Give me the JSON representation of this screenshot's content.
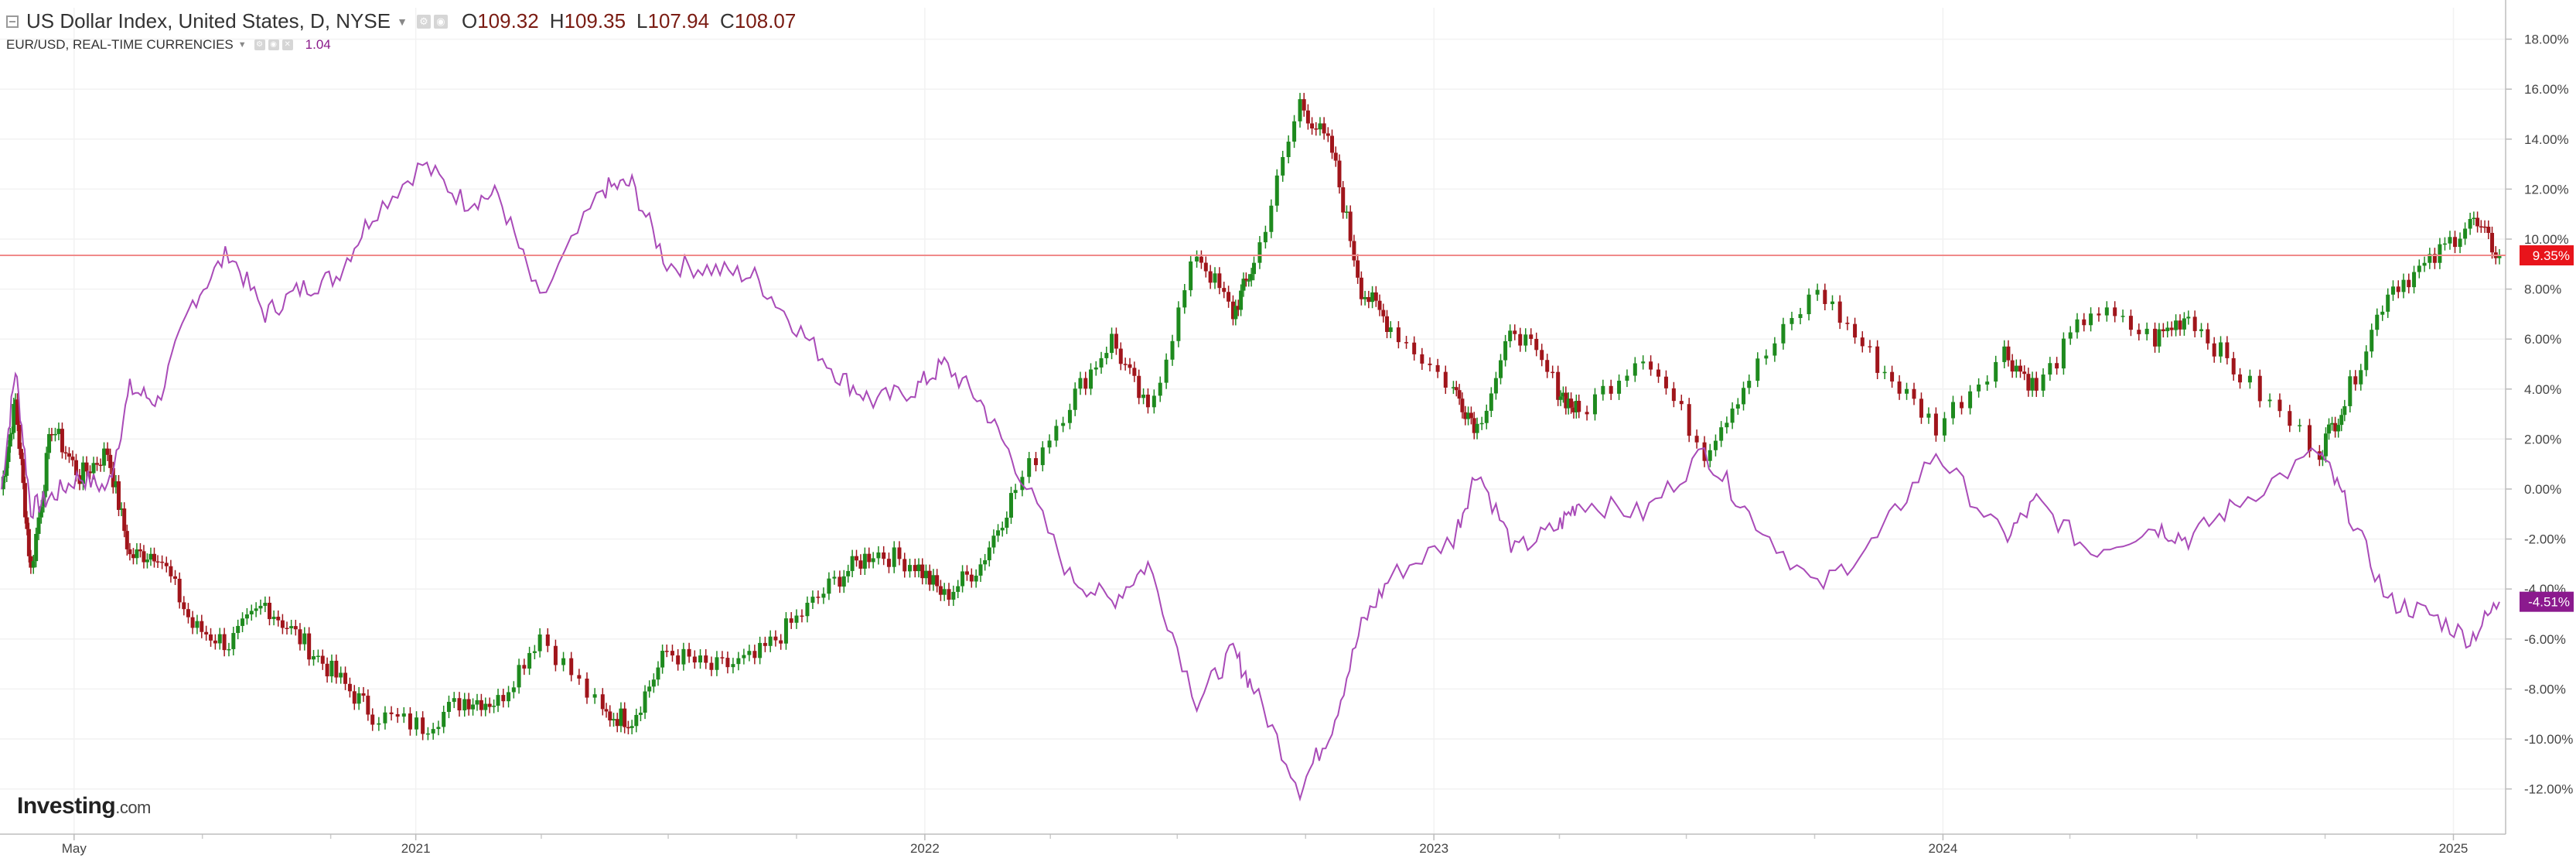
{
  "legend": {
    "main": {
      "title": "US Dollar Index, United States, D, NYSE",
      "ohlc": [
        {
          "label": "O",
          "value": "109.32"
        },
        {
          "label": "H",
          "value": "109.35"
        },
        {
          "label": "L",
          "value": "107.94"
        },
        {
          "label": "C",
          "value": "108.07"
        }
      ]
    },
    "sub": {
      "title": "EUR/USD, REAL-TIME CURRENCIES",
      "value": "1.04"
    }
  },
  "logo": {
    "brand": "Investing",
    "suffix": ".com"
  },
  "colors": {
    "up": "#1e8a1e",
    "down": "#a0151b",
    "eurusd_line": "#a94bb8",
    "dxy_badge": "#e8141b",
    "eurusd_badge": "#8b1a8e",
    "price_line": "#f08a8a",
    "grid": "#f2f2f2"
  },
  "chart_data": {
    "type": "line",
    "grid": true,
    "yaxis_side": "right",
    "ylim": [
      -13,
      19
    ],
    "y_ticks": [
      18,
      16,
      14,
      12,
      10,
      8,
      6,
      4,
      2,
      0,
      -2,
      -4,
      -6,
      -8,
      -10,
      -12
    ],
    "y_tick_labels": [
      "18.00%",
      "16.00%",
      "14.00%",
      "12.00%",
      "10.00%",
      "8.00%",
      "6.00%",
      "4.00%",
      "2.00%",
      "0.00%",
      "-2.00%",
      "-4.00%",
      "-6.00%",
      "-8.00%",
      "-10.00%",
      "-12.00%"
    ],
    "xlim": [
      "2020-03-10",
      "2025-02-03"
    ],
    "x_ticks": [
      {
        "date": "2020-05-01",
        "label": "May"
      },
      {
        "date": "2021-01-01",
        "label": "2021"
      },
      {
        "date": "2022-01-01",
        "label": "2022"
      },
      {
        "date": "2023-01-01",
        "label": "2023"
      },
      {
        "date": "2024-01-01",
        "label": "2024"
      },
      {
        "date": "2025-01-01",
        "label": "2025"
      }
    ],
    "minor_x_ticks": [
      "2020-08-01",
      "2020-11-01",
      "2021-04-01",
      "2021-07-01",
      "2021-10-01",
      "2022-04-01",
      "2022-07-01",
      "2022-10-01",
      "2023-04-01",
      "2023-07-01",
      "2023-10-01",
      "2024-04-01",
      "2024-07-01",
      "2024-10-01"
    ],
    "badges": [
      {
        "series": "US Dollar Index",
        "value": 9.35,
        "label": "9.35%"
      },
      {
        "series": "EUR/USD",
        "value": -4.51,
        "label": "-4.51%"
      }
    ],
    "series": [
      {
        "name": "US Dollar Index",
        "kind": "candlestick",
        "values": [
          {
            "date": "2020-03-10",
            "value": 0.0
          },
          {
            "date": "2020-03-20",
            "value": 3.5
          },
          {
            "date": "2020-03-31",
            "value": -3.3
          },
          {
            "date": "2020-04-15",
            "value": 2.5
          },
          {
            "date": "2020-05-05",
            "value": 0.5
          },
          {
            "date": "2020-05-25",
            "value": 1.5
          },
          {
            "date": "2020-06-10",
            "value": -2.7
          },
          {
            "date": "2020-06-30",
            "value": -2.5
          },
          {
            "date": "2020-07-25",
            "value": -5.5
          },
          {
            "date": "2020-08-20",
            "value": -6.2
          },
          {
            "date": "2020-09-15",
            "value": -4.6
          },
          {
            "date": "2020-10-10",
            "value": -6.0
          },
          {
            "date": "2020-11-05",
            "value": -7.5
          },
          {
            "date": "2020-12-01",
            "value": -9.0
          },
          {
            "date": "2021-01-06",
            "value": -9.5
          },
          {
            "date": "2021-02-05",
            "value": -8.4
          },
          {
            "date": "2021-03-01",
            "value": -8.5
          },
          {
            "date": "2021-03-31",
            "value": -5.8
          },
          {
            "date": "2021-05-15",
            "value": -9.0
          },
          {
            "date": "2021-06-05",
            "value": -9.2
          },
          {
            "date": "2021-06-30",
            "value": -6.5
          },
          {
            "date": "2021-08-01",
            "value": -7.2
          },
          {
            "date": "2021-09-01",
            "value": -6.8
          },
          {
            "date": "2021-10-01",
            "value": -5.2
          },
          {
            "date": "2021-11-01",
            "value": -3.5
          },
          {
            "date": "2021-11-25",
            "value": -2.5
          },
          {
            "date": "2021-12-25",
            "value": -3.0
          },
          {
            "date": "2022-01-15",
            "value": -4.3
          },
          {
            "date": "2022-02-10",
            "value": -3.0
          },
          {
            "date": "2022-03-07",
            "value": 0.0
          },
          {
            "date": "2022-04-15",
            "value": 3.5
          },
          {
            "date": "2022-05-15",
            "value": 6.0
          },
          {
            "date": "2022-06-10",
            "value": 3.0
          },
          {
            "date": "2022-07-15",
            "value": 9.5
          },
          {
            "date": "2022-08-10",
            "value": 7.0
          },
          {
            "date": "2022-08-25",
            "value": 9.0
          },
          {
            "date": "2022-09-27",
            "value": 15.5
          },
          {
            "date": "2022-10-20",
            "value": 13.5
          },
          {
            "date": "2022-11-10",
            "value": 8.0
          },
          {
            "date": "2022-12-01",
            "value": 6.5
          },
          {
            "date": "2023-01-15",
            "value": 4.0
          },
          {
            "date": "2023-02-01",
            "value": 2.5
          },
          {
            "date": "2023-02-28",
            "value": 6.5
          },
          {
            "date": "2023-03-31",
            "value": 4.0
          },
          {
            "date": "2023-04-15",
            "value": 3.0
          },
          {
            "date": "2023-05-31",
            "value": 5.5
          },
          {
            "date": "2023-07-14",
            "value": 1.5
          },
          {
            "date": "2023-08-15",
            "value": 4.5
          },
          {
            "date": "2023-10-03",
            "value": 8.0
          },
          {
            "date": "2023-11-15",
            "value": 5.0
          },
          {
            "date": "2023-12-27",
            "value": 2.5
          },
          {
            "date": "2024-02-14",
            "value": 5.5
          },
          {
            "date": "2024-03-08",
            "value": 4.0
          },
          {
            "date": "2024-04-16",
            "value": 7.2
          },
          {
            "date": "2024-06-01",
            "value": 6.0
          },
          {
            "date": "2024-06-25",
            "value": 7.0
          },
          {
            "date": "2024-08-01",
            "value": 4.5
          },
          {
            "date": "2024-09-27",
            "value": 1.5
          },
          {
            "date": "2024-10-15",
            "value": 3.5
          },
          {
            "date": "2024-11-15",
            "value": 8.0
          },
          {
            "date": "2024-12-15",
            "value": 9.0
          },
          {
            "date": "2025-01-13",
            "value": 10.8
          },
          {
            "date": "2025-02-03",
            "value": 9.35
          }
        ]
      },
      {
        "name": "EUR/USD",
        "kind": "line",
        "values": [
          {
            "date": "2020-03-10",
            "value": 0.0
          },
          {
            "date": "2020-03-20",
            "value": 4.8
          },
          {
            "date": "2020-03-31",
            "value": -0.8
          },
          {
            "date": "2020-04-15",
            "value": -0.3
          },
          {
            "date": "2020-05-05",
            "value": 0.5
          },
          {
            "date": "2020-05-25",
            "value": 0.0
          },
          {
            "date": "2020-06-10",
            "value": 4.0
          },
          {
            "date": "2020-06-30",
            "value": 3.5
          },
          {
            "date": "2020-07-25",
            "value": 7.5
          },
          {
            "date": "2020-08-20",
            "value": 9.5
          },
          {
            "date": "2020-09-15",
            "value": 7.0
          },
          {
            "date": "2020-10-10",
            "value": 8.0
          },
          {
            "date": "2020-11-05",
            "value": 8.5
          },
          {
            "date": "2020-12-01",
            "value": 11.0
          },
          {
            "date": "2021-01-06",
            "value": 13.0
          },
          {
            "date": "2021-02-05",
            "value": 11.5
          },
          {
            "date": "2021-03-01",
            "value": 11.8
          },
          {
            "date": "2021-03-31",
            "value": 7.5
          },
          {
            "date": "2021-05-15",
            "value": 12.0
          },
          {
            "date": "2021-06-05",
            "value": 12.2
          },
          {
            "date": "2021-06-30",
            "value": 9.0
          },
          {
            "date": "2021-08-01",
            "value": 8.8
          },
          {
            "date": "2021-09-01",
            "value": 8.5
          },
          {
            "date": "2021-10-01",
            "value": 6.5
          },
          {
            "date": "2021-11-01",
            "value": 4.5
          },
          {
            "date": "2021-11-25",
            "value": 3.5
          },
          {
            "date": "2021-12-25",
            "value": 4.0
          },
          {
            "date": "2022-01-15",
            "value": 5.0
          },
          {
            "date": "2022-02-10",
            "value": 3.5
          },
          {
            "date": "2022-03-07",
            "value": 1.0
          },
          {
            "date": "2022-04-15",
            "value": -3.5
          },
          {
            "date": "2022-05-15",
            "value": -4.5
          },
          {
            "date": "2022-06-10",
            "value": -3.0
          },
          {
            "date": "2022-07-15",
            "value": -8.5
          },
          {
            "date": "2022-08-10",
            "value": -6.5
          },
          {
            "date": "2022-08-25",
            "value": -8.0
          },
          {
            "date": "2022-09-27",
            "value": -12.0
          },
          {
            "date": "2022-10-20",
            "value": -9.5
          },
          {
            "date": "2022-11-10",
            "value": -5.5
          },
          {
            "date": "2022-12-01",
            "value": -3.5
          },
          {
            "date": "2023-01-15",
            "value": -2.0
          },
          {
            "date": "2023-02-01",
            "value": 0.8
          },
          {
            "date": "2023-02-28",
            "value": -2.5
          },
          {
            "date": "2023-03-31",
            "value": -1.5
          },
          {
            "date": "2023-04-15",
            "value": -0.5
          },
          {
            "date": "2023-05-31",
            "value": -1.0
          },
          {
            "date": "2023-07-14",
            "value": 1.5
          },
          {
            "date": "2023-08-15",
            "value": -1.0
          },
          {
            "date": "2023-10-03",
            "value": -4.0
          },
          {
            "date": "2023-11-15",
            "value": -2.0
          },
          {
            "date": "2023-12-27",
            "value": 1.5
          },
          {
            "date": "2024-02-14",
            "value": -2.0
          },
          {
            "date": "2024-03-08",
            "value": -0.5
          },
          {
            "date": "2024-04-16",
            "value": -2.5
          },
          {
            "date": "2024-06-01",
            "value": -1.5
          },
          {
            "date": "2024-06-25",
            "value": -2.0
          },
          {
            "date": "2024-08-01",
            "value": -0.5
          },
          {
            "date": "2024-09-27",
            "value": 1.5
          },
          {
            "date": "2024-10-15",
            "value": -0.5
          },
          {
            "date": "2024-11-15",
            "value": -4.5
          },
          {
            "date": "2024-12-15",
            "value": -5.0
          },
          {
            "date": "2025-01-13",
            "value": -6.0
          },
          {
            "date": "2025-02-03",
            "value": -4.51
          }
        ]
      }
    ]
  }
}
